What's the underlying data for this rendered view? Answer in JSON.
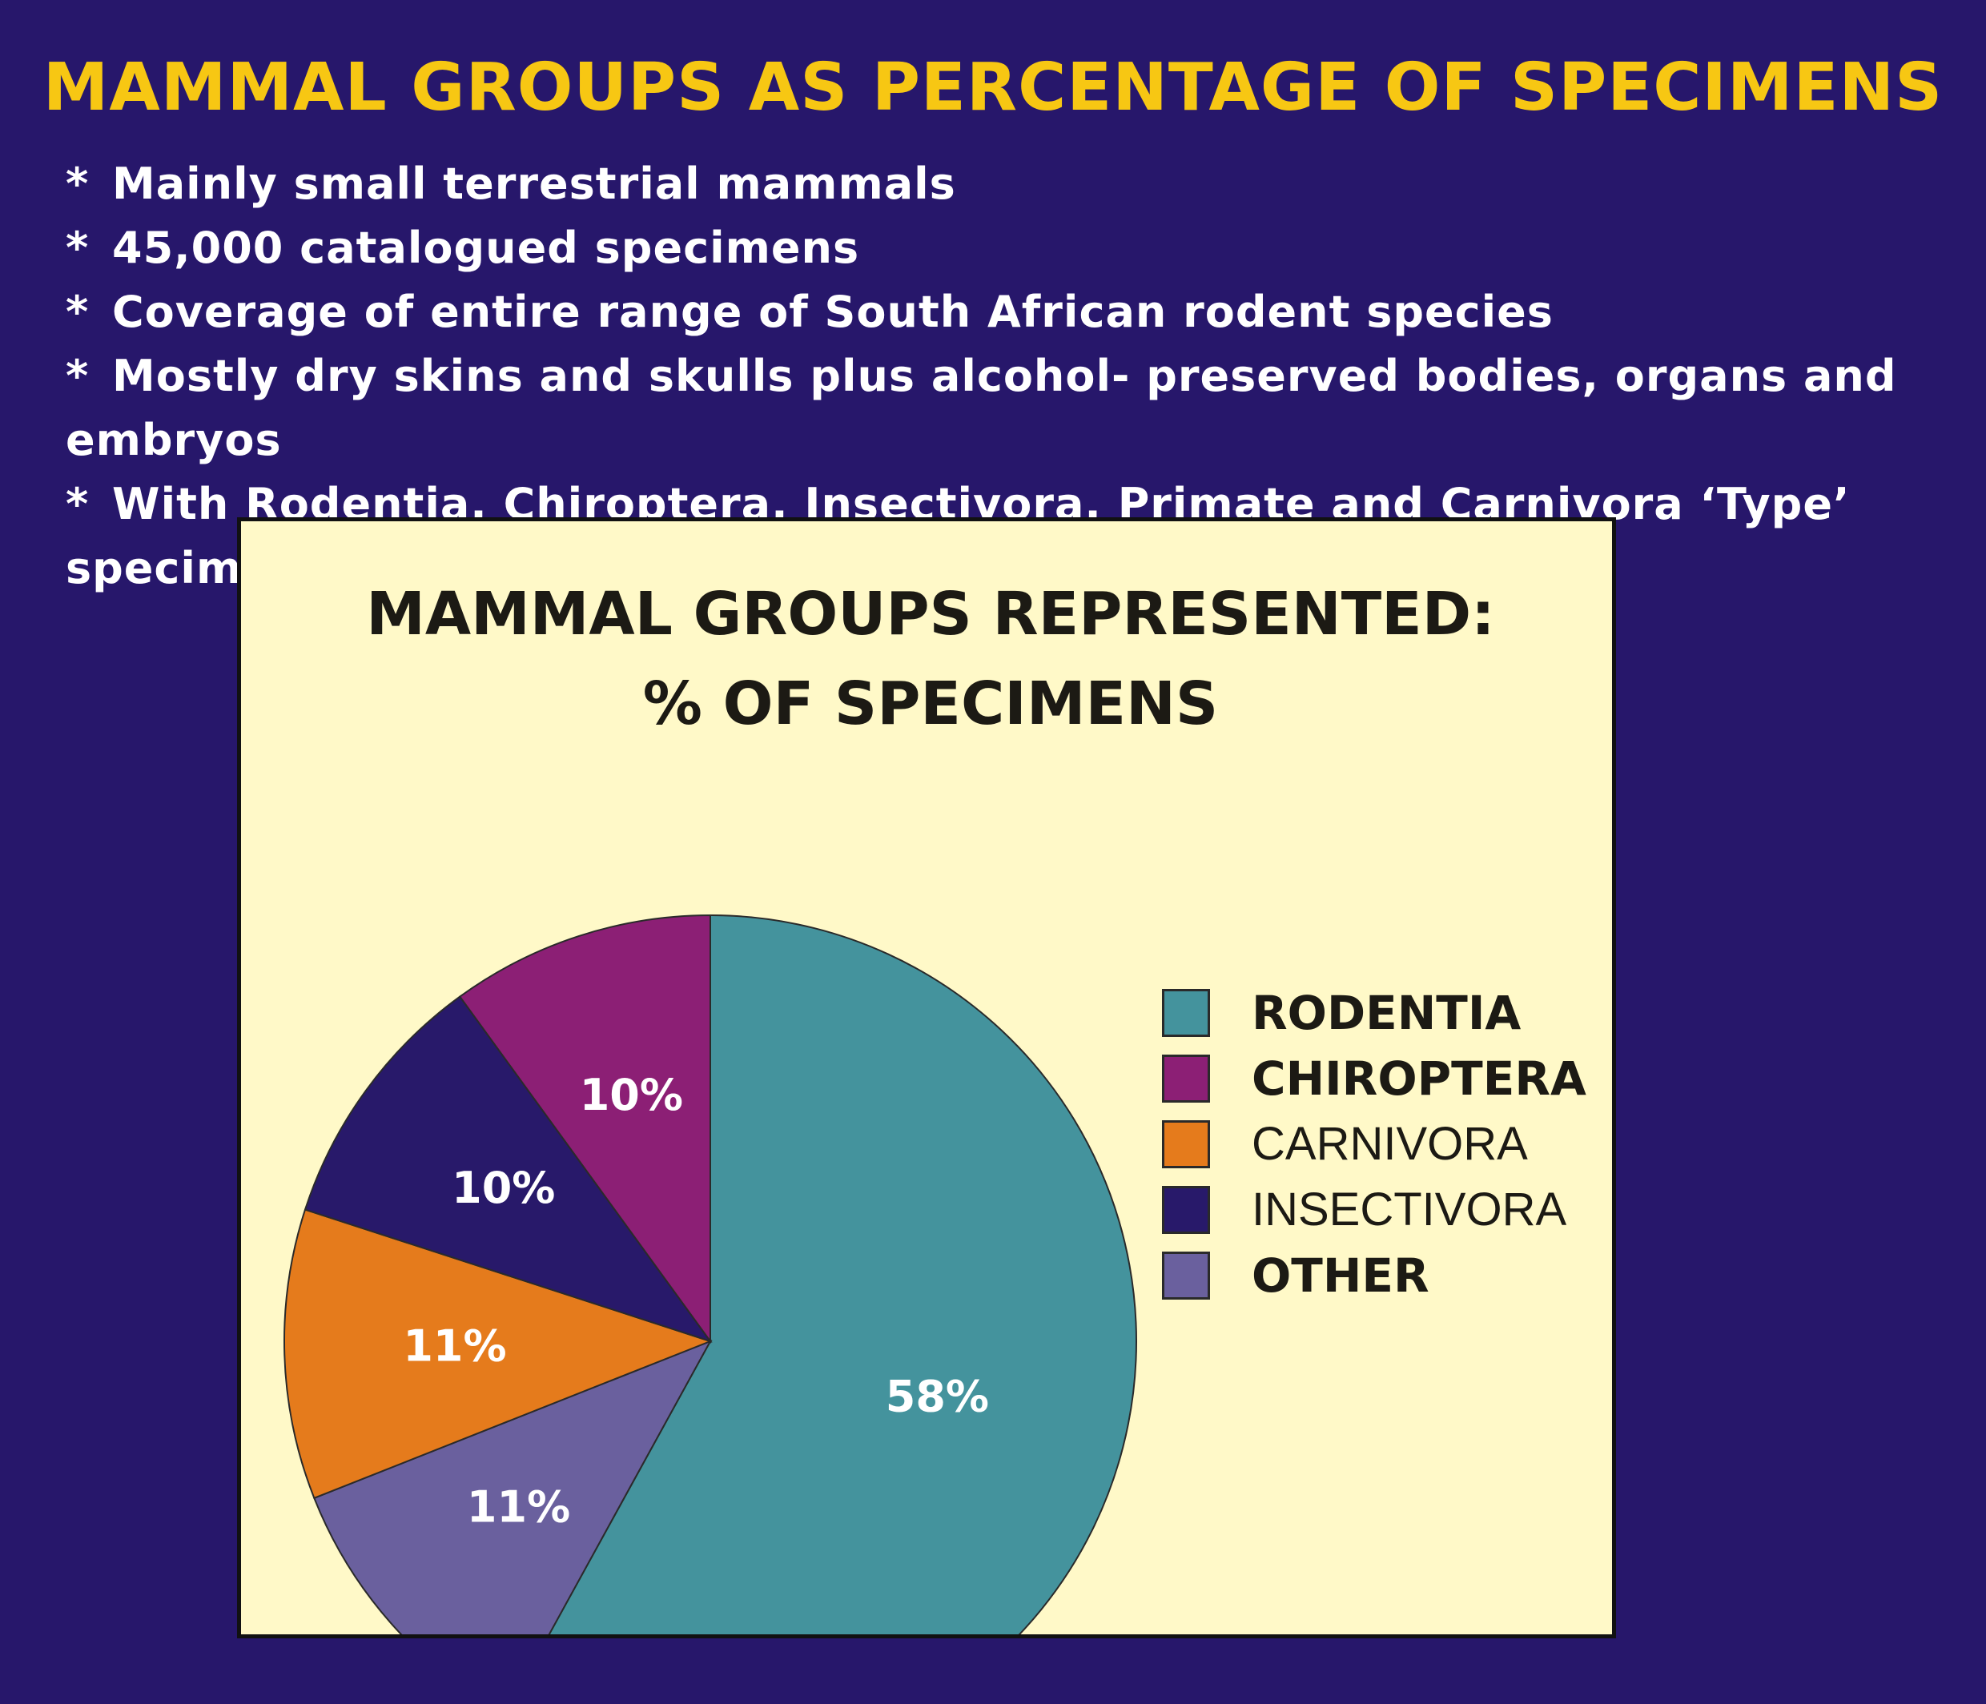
{
  "header": {
    "title": "MAMMAL GROUPS AS PERCENTAGE OF SPECIMENS",
    "bullets": [
      "Mainly small terrestrial mammals",
      "45,000 catalogued specimens",
      "Coverage of entire range of South African rodent species",
      "Mostly dry skins and skulls plus alcohol- preserved bodies, organs and embryos",
      "With Rodentia, Chiroptera, Insectivora, Primate and Carnivora ‘Type’ specimens"
    ]
  },
  "chart_data": {
    "type": "pie",
    "title_lines": [
      "MAMMAL GROUPS REPRESENTED:",
      "% OF SPECIMENS"
    ],
    "slices": [
      {
        "name": "RODENTIA",
        "value": 58,
        "label": "58%",
        "color": "#44939d"
      },
      {
        "name": "OTHER",
        "value": 11,
        "label": "11%",
        "color": "#6a609e"
      },
      {
        "name": "CARNIVORA",
        "value": 11,
        "label": "11%",
        "color": "#e57b1c"
      },
      {
        "name": "INSECTIVORA",
        "value": 10,
        "label": "10%",
        "color": "#28196a"
      },
      {
        "name": "CHIROPTERA",
        "value": 10,
        "label": "10%",
        "color": "#8c1f75"
      }
    ],
    "legend": [
      {
        "label": "RODENTIA",
        "color": "#44939d",
        "bold": true
      },
      {
        "label": "CHIROPTERA",
        "color": "#8c1f75",
        "bold": true
      },
      {
        "label": "CARNIVORA",
        "color": "#e57b1c",
        "bold": false
      },
      {
        "label": "INSECTIVORA",
        "color": "#28196a",
        "bold": false
      },
      {
        "label": "OTHER",
        "color": "#6a609e",
        "bold": true
      }
    ],
    "legend_position": "right",
    "start": "top",
    "direction": "clockwise"
  }
}
